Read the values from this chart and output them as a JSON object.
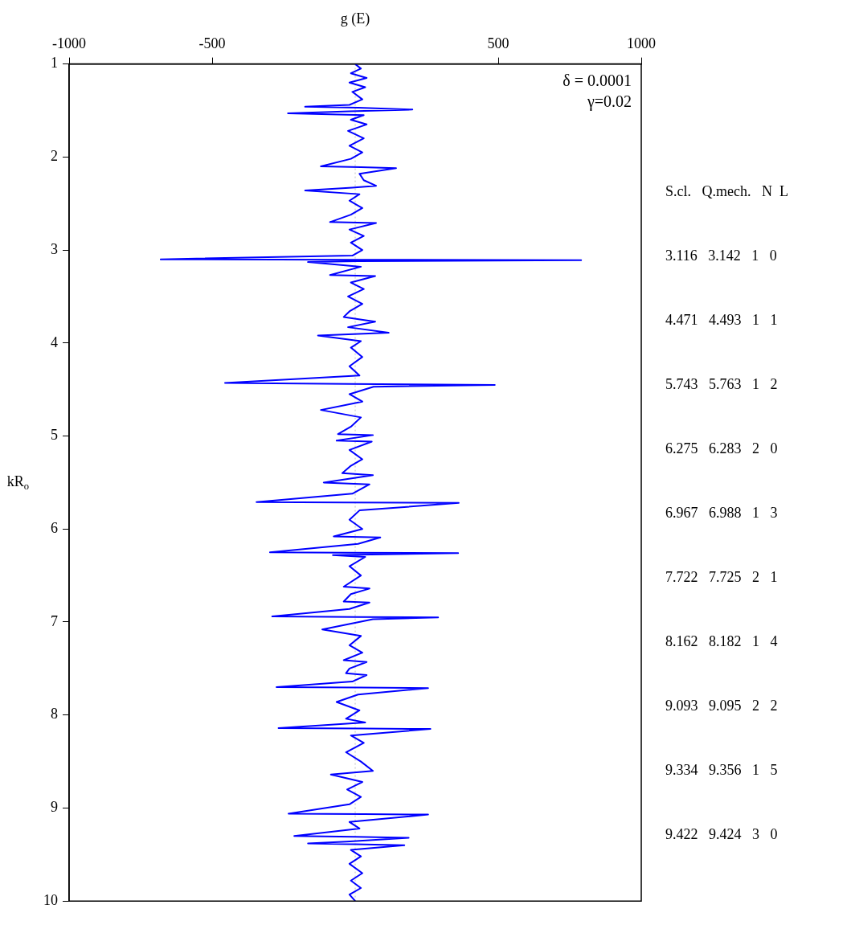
{
  "chart_data": {
    "type": "line",
    "xlabel": "g (E)",
    "ylabel": "kR$_{o}$",
    "x": [
      0,
      20,
      -15,
      40,
      -20,
      35,
      -10,
      25,
      -20,
      -175,
      10,
      200,
      -20,
      -235,
      30,
      -15,
      40,
      -25,
      30,
      -20,
      25,
      -15,
      -120,
      20,
      143,
      15,
      30,
      73,
      -10,
      -175,
      15,
      -20,
      25,
      -15,
      -88,
      73,
      -20,
      30,
      -15,
      25,
      -10,
      -680,
      -20,
      790,
      10,
      -165,
      20,
      -88,
      70,
      -15,
      30,
      -25,
      25,
      -20,
      -40,
      70,
      -25,
      117,
      -130,
      20,
      -15,
      25,
      -20,
      15,
      -455,
      -20,
      488,
      64,
      -20,
      25,
      -120,
      20,
      -15,
      -60,
      62,
      -65,
      58,
      -20,
      25,
      -15,
      -45,
      62,
      -110,
      50,
      -10,
      -345,
      -40,
      362,
      15,
      -20,
      25,
      -75,
      88,
      10,
      -298,
      -30,
      360,
      -78,
      35,
      -20,
      20,
      -40,
      50,
      -15,
      -40,
      50,
      -20,
      -290,
      0,
      290,
      62,
      -115,
      20,
      -20,
      25,
      -40,
      40,
      -20,
      -32,
      40,
      -10,
      -275,
      20,
      255,
      10,
      -65,
      15,
      -32,
      35,
      -268,
      30,
      263,
      -15,
      30,
      -32,
      20,
      62,
      -85,
      25,
      -28,
      20,
      -20,
      -233,
      30,
      255,
      -20,
      15,
      -213,
      0,
      187,
      -30,
      -165,
      0,
      172,
      -15,
      20,
      -20,
      25,
      -15,
      20,
      -20,
      0
    ],
    "series": [
      {
        "color": "#0000ff",
        "values": [
          1.0,
          1.05,
          1.1,
          1.15,
          1.2,
          1.25,
          1.3,
          1.38,
          1.44,
          1.46,
          1.47,
          1.49,
          1.51,
          1.53,
          1.55,
          1.6,
          1.65,
          1.72,
          1.8,
          1.88,
          1.95,
          2.02,
          2.1,
          2.11,
          2.12,
          2.18,
          2.25,
          2.31,
          2.33,
          2.36,
          2.4,
          2.47,
          2.55,
          2.62,
          2.7,
          2.71,
          2.78,
          2.85,
          2.92,
          3.0,
          3.06,
          3.1,
          3.105,
          3.11,
          3.12,
          3.13,
          3.18,
          3.27,
          3.28,
          3.35,
          3.42,
          3.5,
          3.58,
          3.66,
          3.72,
          3.77,
          3.83,
          3.89,
          3.92,
          3.98,
          4.05,
          4.15,
          4.25,
          4.35,
          4.43,
          4.44,
          4.45,
          4.47,
          4.55,
          4.63,
          4.72,
          4.8,
          4.9,
          4.98,
          4.99,
          5.05,
          5.06,
          5.15,
          5.25,
          5.32,
          5.4,
          5.42,
          5.5,
          5.52,
          5.62,
          5.71,
          5.715,
          5.72,
          5.8,
          5.9,
          6.0,
          6.08,
          6.09,
          6.16,
          6.25,
          6.255,
          6.26,
          6.28,
          6.3,
          6.4,
          6.5,
          6.62,
          6.64,
          6.7,
          6.78,
          6.79,
          6.86,
          6.94,
          6.945,
          6.95,
          6.97,
          7.08,
          7.15,
          7.25,
          7.33,
          7.41,
          7.43,
          7.5,
          7.55,
          7.57,
          7.64,
          7.7,
          7.705,
          7.71,
          7.78,
          7.86,
          7.95,
          8.04,
          8.08,
          8.14,
          8.145,
          8.15,
          8.22,
          8.3,
          8.4,
          8.5,
          8.6,
          8.64,
          8.72,
          8.8,
          8.88,
          8.96,
          9.06,
          9.065,
          9.07,
          9.15,
          9.22,
          9.3,
          9.31,
          9.32,
          9.36,
          9.38,
          9.39,
          9.4,
          9.45,
          9.52,
          9.6,
          9.7,
          9.78,
          9.86,
          9.93,
          10.0
        ]
      }
    ],
    "xlim": [
      -1000,
      1000
    ],
    "xticks": [
      -1000,
      -500,
      500,
      1000
    ],
    "ylim": [
      10,
      1
    ],
    "yticks": [
      1,
      2,
      3,
      4,
      5,
      6,
      7,
      8,
      9,
      10
    ],
    "ref_lines": [
      {
        "axis": "x",
        "value": 0,
        "color": "#c0c0c0",
        "line_style": "dotted"
      }
    ],
    "annotations": [
      "δ = 0.0001",
      "γ=0.02",
      "S.cl.   Q.mech.   N  L",
      "3.116   3.142   1   0",
      "4.471   4.493   1   1",
      "5.743   5.763   1   2",
      "6.275   6.283   2   0",
      "6.967   6.988   1   3",
      "7.722   7.725   2   1",
      "8.162   8.182   1   4",
      "9.093   9.095   2   2",
      "9.334   9.356   1   5",
      "9.422   9.424   3   0"
    ],
    "grid": false,
    "legend": false
  }
}
